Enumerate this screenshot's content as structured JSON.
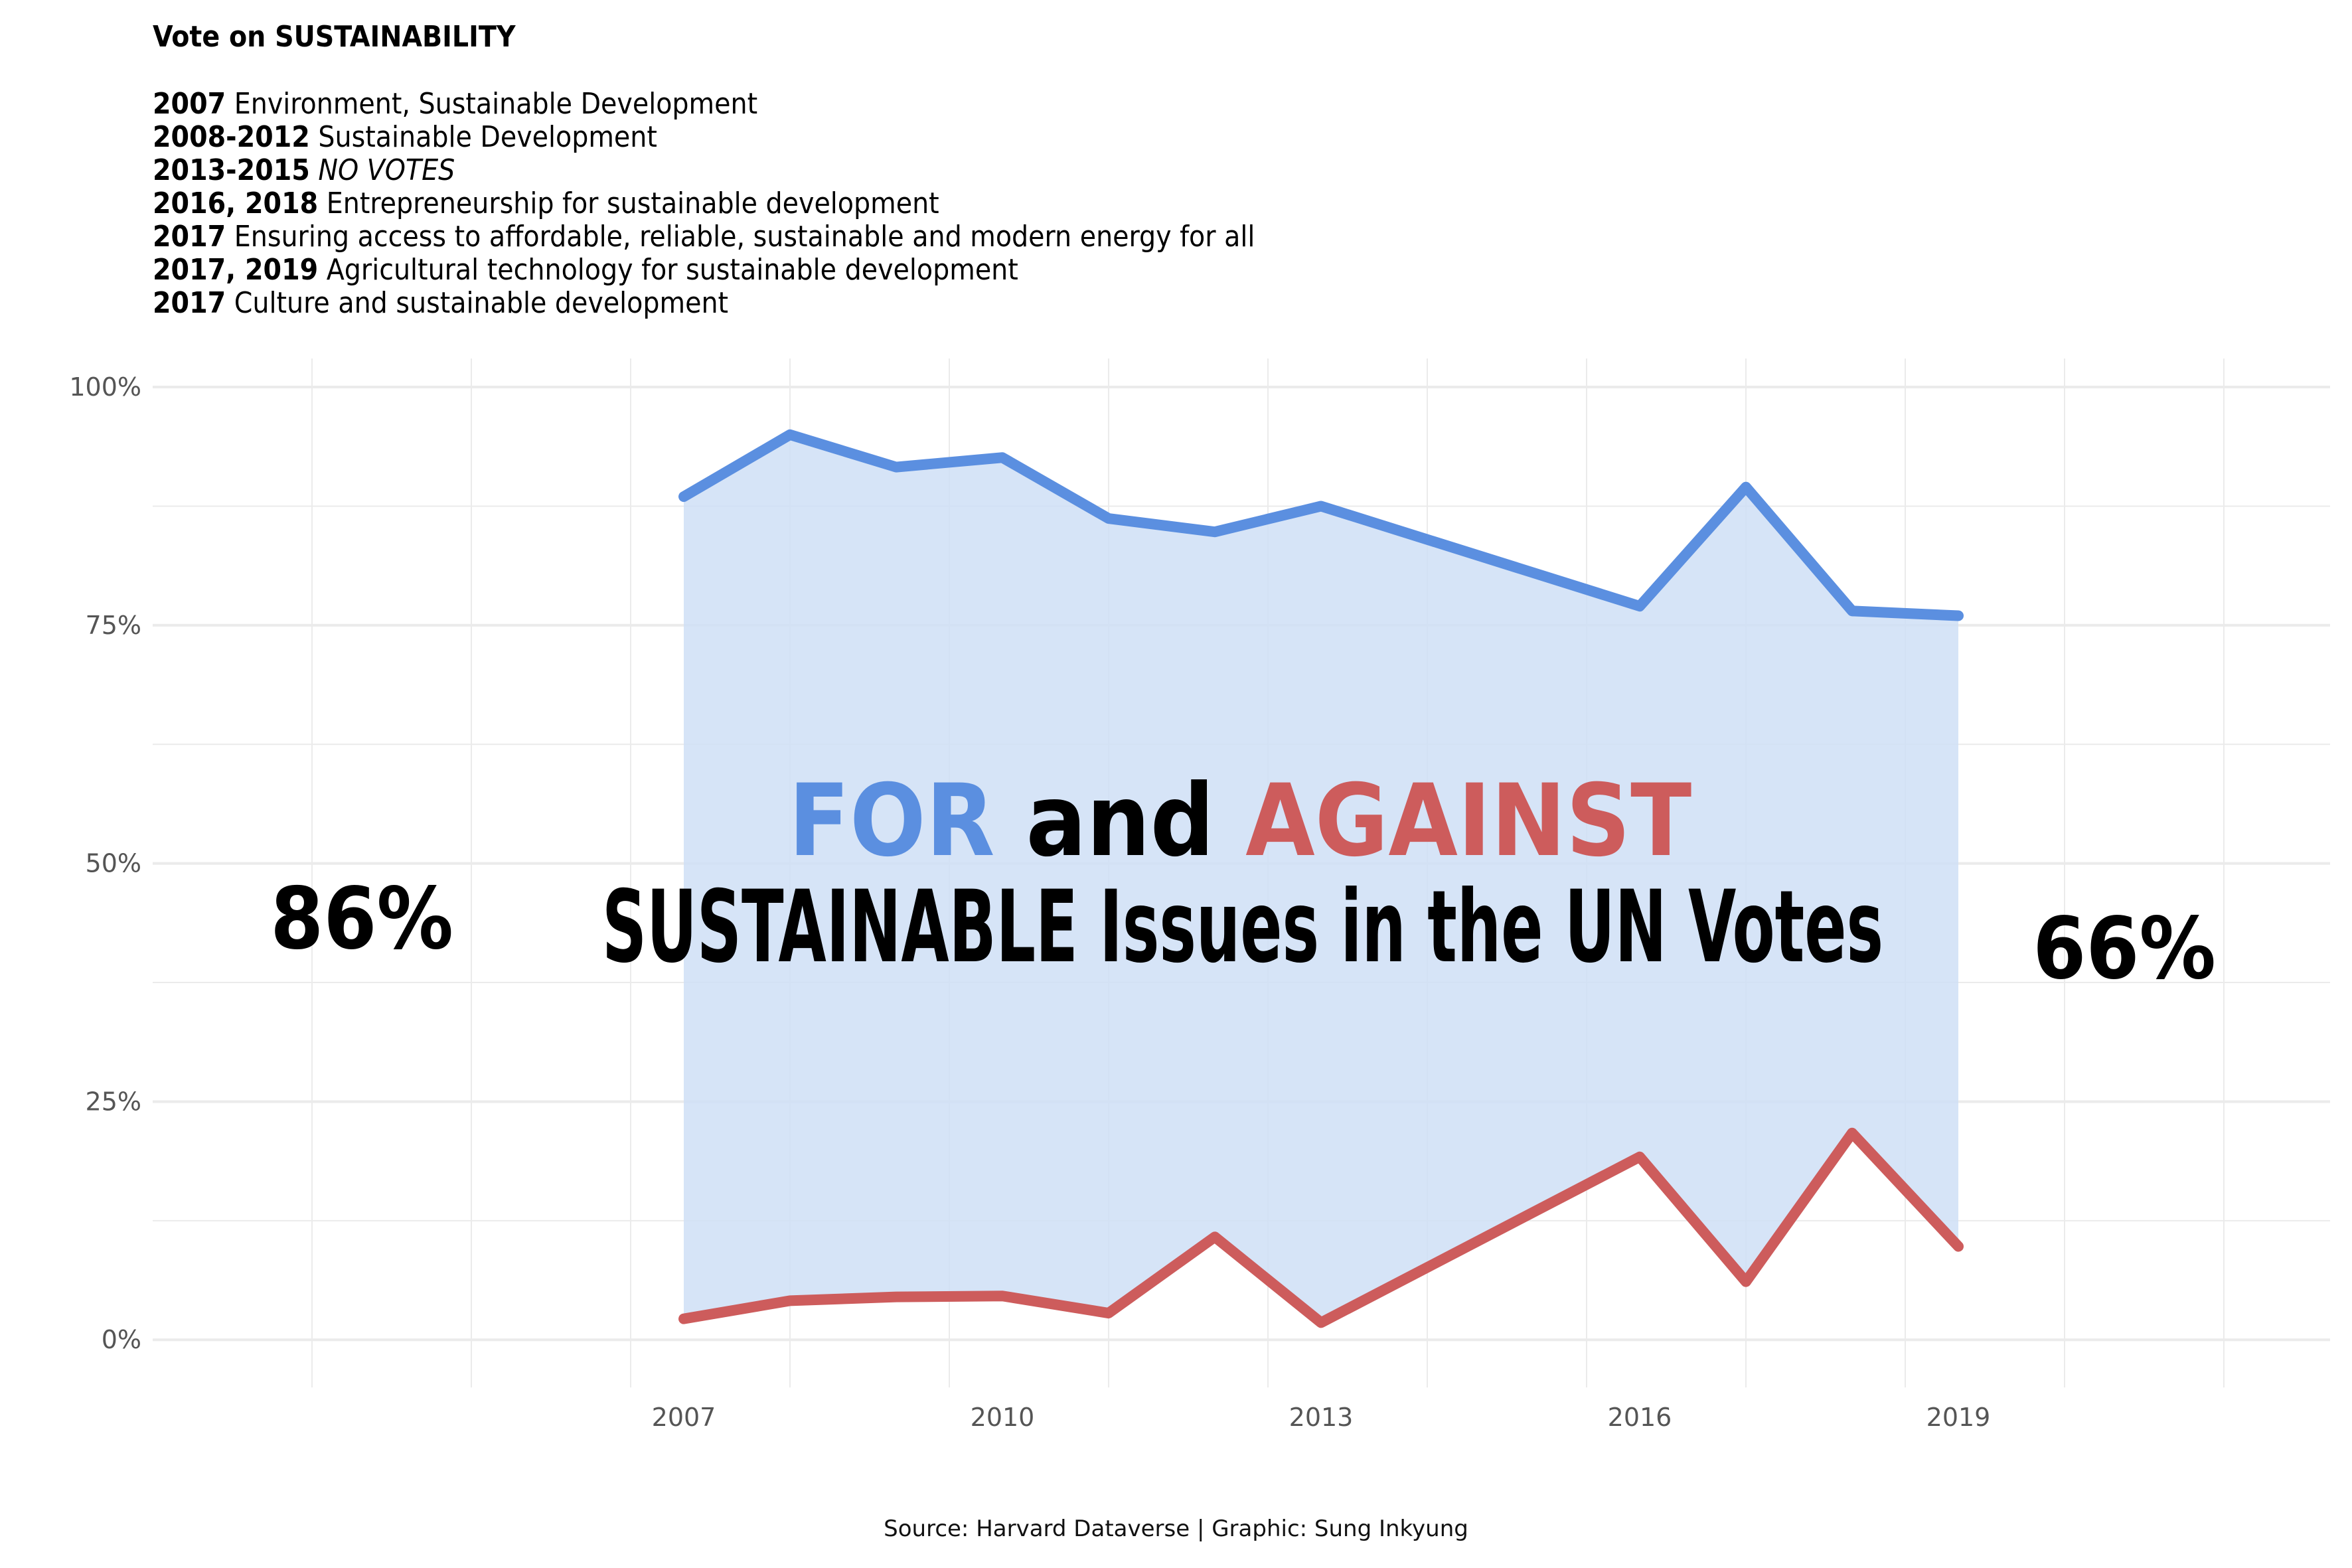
{
  "header": {
    "title": "Vote on SUSTAINABILITY",
    "lines": [
      {
        "years": "2007",
        "text": " Environment, Sustainable Development",
        "italic": false
      },
      {
        "years": "2008-2012",
        "text": " Sustainable Development",
        "italic": false
      },
      {
        "years": "2013-2015",
        "text": "  NO VOTES",
        "italic": true
      },
      {
        "years": "2016, 2018",
        "text": " Entrepreneurship for sustainable development",
        "italic": false
      },
      {
        "years": "2017",
        "text": " Ensuring access to affordable, reliable, sustainable and modern energy for all",
        "italic": false
      },
      {
        "years": "2017, 2019",
        "text": " Agricultural technology for sustainable development",
        "italic": false
      },
      {
        "years": "2017",
        "text": " Culture and sustainable development",
        "italic": false
      }
    ]
  },
  "headline": {
    "for": "FOR",
    "and": " and ",
    "against": "AGAINST",
    "line2": "SUSTAINABLE Issues in the UN Votes"
  },
  "annotations": {
    "left": "86%",
    "right": "66%"
  },
  "source": "Source: Harvard Dataverse | Graphic: Sung Inkyung",
  "colors": {
    "for": "#5B8FE0",
    "against": "#CD5C5C",
    "ribbon": "#CFDFF6",
    "grid": "#EBEBEB"
  },
  "chart_data": {
    "type": "area",
    "x": [
      2007,
      2008,
      2009,
      2010,
      2011,
      2012,
      2013,
      2016,
      2017,
      2018,
      2019
    ],
    "series": [
      {
        "name": "FOR",
        "values": [
          88.5,
          95.0,
          91.6,
          92.6,
          86.2,
          84.8,
          87.5,
          77.0,
          89.5,
          76.5,
          76.0
        ]
      },
      {
        "name": "AGAINST",
        "values": [
          2.2,
          4.1,
          4.5,
          4.6,
          2.8,
          10.8,
          1.8,
          19.2,
          6.1,
          21.7,
          9.8
        ]
      }
    ],
    "xticks": [
      "2007",
      "2010",
      "2013",
      "2016",
      "2019"
    ],
    "yticks": [
      "0%",
      "25%",
      "50%",
      "75%",
      "100%"
    ],
    "xlim": [
      2002,
      2022.5
    ],
    "ylim": [
      -5,
      103
    ],
    "grid": true
  }
}
